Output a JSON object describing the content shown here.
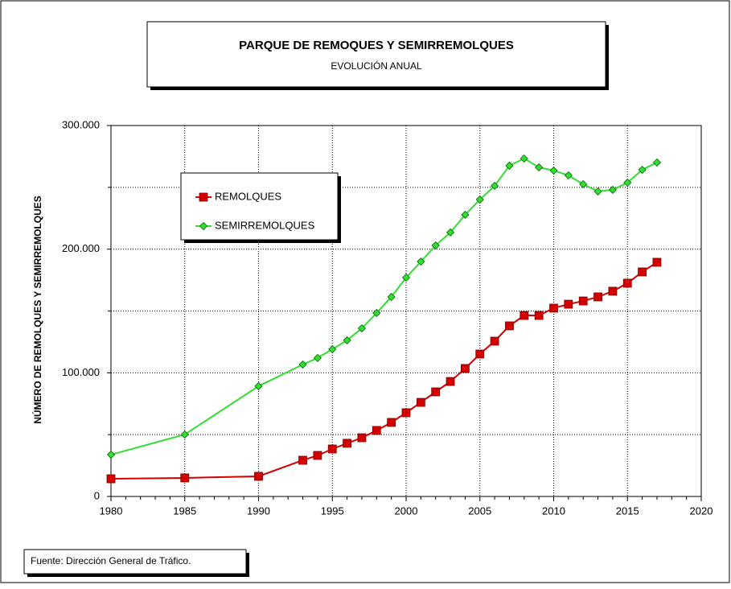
{
  "chart_data": {
    "type": "line",
    "title": "PARQUE DE REMOQUES Y SEMIRREMOLQUES",
    "subtitle": "EVOLUCIÓN ANUAL",
    "ylabel": "NÚMERO DE REMOLQUES Y SEMIRREMOLQUES",
    "source": "Fuente: Dirección General de Tráfico.",
    "x": [
      1980,
      1985,
      1990,
      1993,
      1994,
      1995,
      1996,
      1997,
      1998,
      1999,
      2000,
      2001,
      2002,
      2003,
      2004,
      2005,
      2006,
      2007,
      2008,
      2009,
      2010,
      2011,
      2012,
      2013,
      2014,
      2015,
      2016,
      2017
    ],
    "series": [
      {
        "name": "REMOLQUES",
        "color": "#d40000",
        "marker": "square",
        "values": [
          14300,
          15000,
          16300,
          29300,
          33200,
          38400,
          43000,
          47500,
          53400,
          59900,
          67700,
          76100,
          84600,
          93000,
          103500,
          115200,
          125600,
          138000,
          146400,
          146400,
          152300,
          155500,
          158100,
          161400,
          166000,
          172500,
          181600,
          189400
        ]
      },
      {
        "name": "SEMIRREMOLQUES",
        "color": "#33dd33",
        "marker": "diamond",
        "values": [
          33800,
          50100,
          89200,
          106700,
          112000,
          119100,
          126300,
          136000,
          148400,
          161400,
          177000,
          190000,
          203000,
          213500,
          227800,
          240100,
          251200,
          267500,
          273300,
          266200,
          263600,
          259700,
          252500,
          246700,
          248000,
          253800,
          264200,
          270100
        ]
      }
    ],
    "xlim": [
      1980,
      2020
    ],
    "xticks": [
      1980,
      1985,
      1990,
      1995,
      2000,
      2005,
      2010,
      2015,
      2020
    ],
    "ylim": [
      0,
      300000
    ],
    "yticks": [
      0,
      {
        "value": 100000,
        "label": "100.000"
      },
      {
        "value": 200000,
        "label": "200.000"
      },
      {
        "value": 300000,
        "label": "300.000"
      }
    ],
    "minor_yticks": [
      50000,
      150000,
      250000
    ],
    "grid": true
  }
}
